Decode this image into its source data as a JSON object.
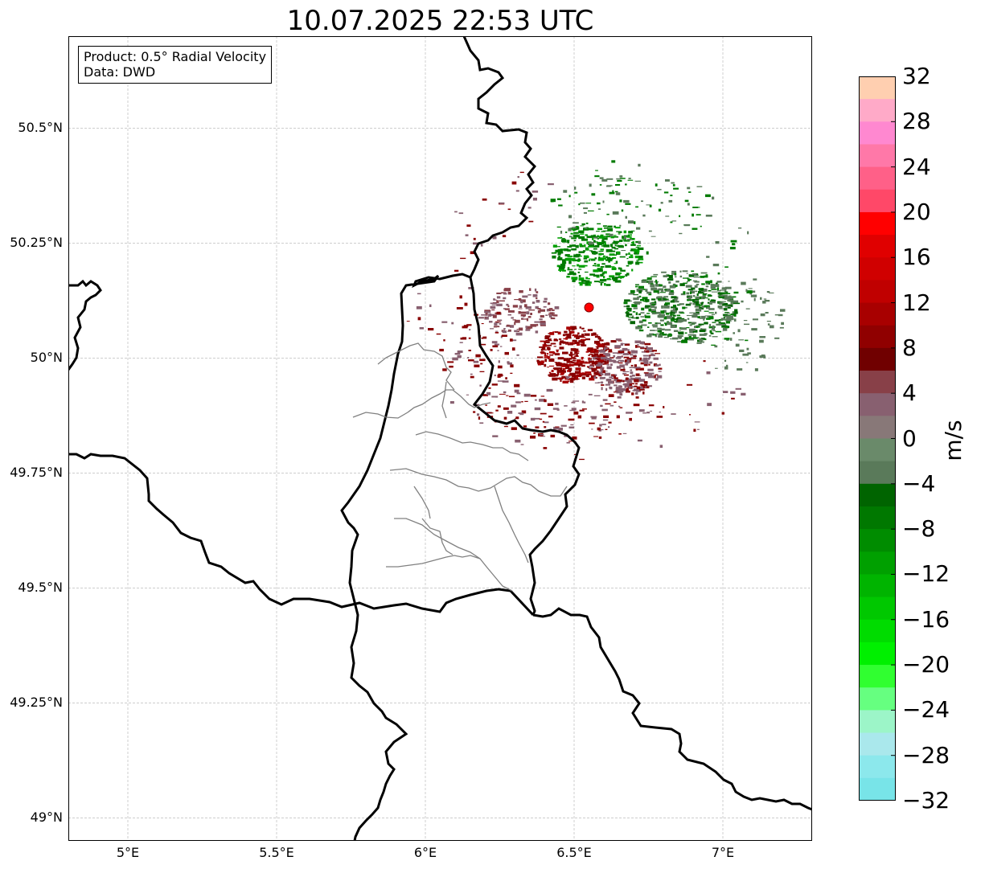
{
  "title": "10.07.2025 22:53 UTC",
  "info": {
    "product_line": "Product: 0.5° Radial Velocity",
    "data_line": "Data: DWD"
  },
  "axes": {
    "lon_range": [
      4.8,
      7.3
    ],
    "lat_range": [
      48.95,
      50.7
    ],
    "lon_ticks": [
      {
        "value": 5.0,
        "label": "5°E"
      },
      {
        "value": 5.5,
        "label": "5.5°E"
      },
      {
        "value": 6.0,
        "label": "6°E"
      },
      {
        "value": 6.5,
        "label": "6.5°E"
      },
      {
        "value": 7.0,
        "label": "7°E"
      }
    ],
    "lat_ticks": [
      {
        "value": 50.5,
        "label": "50.5°N"
      },
      {
        "value": 50.25,
        "label": "50.25°N"
      },
      {
        "value": 50.0,
        "label": "50°N"
      },
      {
        "value": 49.75,
        "label": "49.75°N"
      },
      {
        "value": 49.5,
        "label": "49.5°N"
      },
      {
        "value": 49.25,
        "label": "49.25°N"
      },
      {
        "value": 49.0,
        "label": "49°N"
      }
    ],
    "grid": true
  },
  "radar_site": {
    "lon": 6.55,
    "lat": 50.11,
    "color": "#ff0000"
  },
  "colorbar": {
    "label": "m/s",
    "min": -32,
    "max": 32,
    "ticks": [
      {
        "value": 32,
        "label": "32"
      },
      {
        "value": 28,
        "label": "28"
      },
      {
        "value": 24,
        "label": "24"
      },
      {
        "value": 20,
        "label": "20"
      },
      {
        "value": 16,
        "label": "16"
      },
      {
        "value": 12,
        "label": "12"
      },
      {
        "value": 8,
        "label": "8"
      },
      {
        "value": 4,
        "label": "4"
      },
      {
        "value": 0,
        "label": "0"
      },
      {
        "value": -4,
        "label": "−4"
      },
      {
        "value": -8,
        "label": "−8"
      },
      {
        "value": -12,
        "label": "−12"
      },
      {
        "value": -16,
        "label": "−16"
      },
      {
        "value": -20,
        "label": "−20"
      },
      {
        "value": -24,
        "label": "−24"
      },
      {
        "value": -28,
        "label": "−28"
      },
      {
        "value": -32,
        "label": "−32"
      }
    ],
    "bands": [
      "#ffcfb0",
      "#ffaac8",
      "#ff88d0",
      "#ff78a8",
      "#ff6088",
      "#ff4868",
      "#ff0000",
      "#e00000",
      "#d00000",
      "#c00000",
      "#a80000",
      "#900000",
      "#700000",
      "#884048",
      "#886070",
      "#887878",
      "#6a8a6a",
      "#5a7a5a",
      "#006400",
      "#007800",
      "#008c00",
      "#00a000",
      "#00b400",
      "#00c800",
      "#00dc00",
      "#00f000",
      "#30ff30",
      "#66ff80",
      "#9cf5c8",
      "#aae8ec",
      "#8ce8ec",
      "#78e4e8"
    ]
  },
  "colors": {
    "approaching": "#007a00",
    "approaching_weak": "#5a7a5a",
    "receding": "#880000",
    "receding_weak": "#886070",
    "border_country": "#000000",
    "border_region": "#808080"
  }
}
